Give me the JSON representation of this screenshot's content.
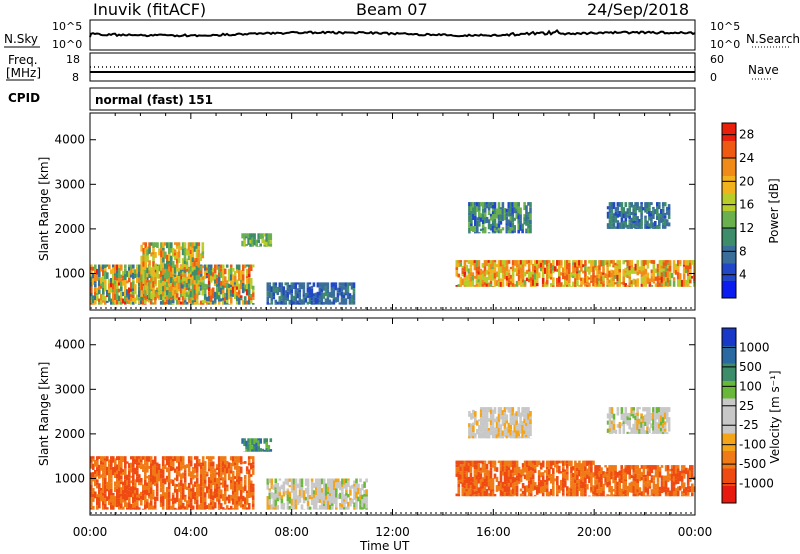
{
  "header": {
    "station": "Inuvik (fitACF)",
    "beam": "Beam 07",
    "date": "24/Sep/2018"
  },
  "noise_panel": {
    "left_label": "N.Sky",
    "left_ticks": [
      "10^5",
      "10^0"
    ],
    "right_label": "N.Search",
    "right_ticks": [
      "10^5",
      "10^0"
    ]
  },
  "freq_panel": {
    "left_label_1": "Freq.",
    "left_label_2": "[MHz]",
    "left_ticks": [
      "18",
      "8"
    ],
    "right_label": "Nave",
    "right_ticks": [
      "60",
      "0"
    ]
  },
  "cpid": {
    "label": "CPID",
    "value": "normal (fast) 151"
  },
  "colors": {
    "power": [
      "#0a1cf0",
      "#2147c8",
      "#3a6e9a",
      "#3d8c6a",
      "#6bb04e",
      "#b8cc2a",
      "#f2b21c",
      "#f08a18",
      "#ee5a12",
      "#e8200c"
    ],
    "velocity": [
      "#e81a10",
      "#ee4a12",
      "#f07a16",
      "#f4a418",
      "#c8c8c8",
      "#c8c8c8",
      "#6ab83a",
      "#3d8c6a",
      "#2a6aa0",
      "#1838c8"
    ]
  },
  "chart_data": [
    {
      "type": "heatmap",
      "name": "power",
      "ylabel": "Slant Range [km]",
      "y_ticks": [
        1000,
        2000,
        3000,
        4000
      ],
      "ylim": [
        180,
        4600
      ],
      "xlim": [
        "00:00",
        "24:00"
      ],
      "colorbar": {
        "label": "Power [dB]",
        "ticks": [
          4,
          8,
          12,
          16,
          20,
          24,
          28
        ],
        "range": [
          0,
          30
        ]
      },
      "approx_echo_regions": [
        {
          "t_start_h": 0.0,
          "t_end_h": 6.5,
          "range_km": [
            300,
            1200
          ],
          "power_db": [
            6,
            28
          ]
        },
        {
          "t_start_h": 2.0,
          "t_end_h": 4.5,
          "range_km": [
            400,
            1700
          ],
          "power_db": [
            10,
            26
          ]
        },
        {
          "t_start_h": 6.0,
          "t_end_h": 7.2,
          "range_km": [
            1600,
            1900
          ],
          "power_db": [
            10,
            16
          ]
        },
        {
          "t_start_h": 7.0,
          "t_end_h": 10.5,
          "range_km": [
            300,
            800
          ],
          "power_db": [
            4,
            10
          ]
        },
        {
          "t_start_h": 14.5,
          "t_end_h": 20.0,
          "range_km": [
            700,
            1300
          ],
          "power_db": [
            14,
            28
          ]
        },
        {
          "t_start_h": 15.0,
          "t_end_h": 17.5,
          "range_km": [
            1900,
            2600
          ],
          "power_db": [
            4,
            14
          ]
        },
        {
          "t_start_h": 20.0,
          "t_end_h": 24.0,
          "range_km": [
            700,
            1300
          ],
          "power_db": [
            14,
            28
          ]
        },
        {
          "t_start_h": 20.5,
          "t_end_h": 23.0,
          "range_km": [
            2000,
            2600
          ],
          "power_db": [
            4,
            12
          ]
        }
      ]
    },
    {
      "type": "heatmap",
      "name": "velocity",
      "ylabel": "Slant Range [km]",
      "xlabel": "Time UT",
      "y_ticks": [
        1000,
        2000,
        3000,
        4000
      ],
      "x_ticks": [
        "00:00",
        "04:00",
        "08:00",
        "12:00",
        "16:00",
        "20:00",
        "00:00"
      ],
      "ylim": [
        180,
        4600
      ],
      "colorbar": {
        "label": "Velocity [m s⁻¹]",
        "ticks": [
          "1000",
          "500",
          "100",
          "25",
          "-25",
          "-100",
          "-500",
          "-1000"
        ]
      },
      "approx_echo_regions": [
        {
          "t_start_h": 0.0,
          "t_end_h": 6.5,
          "range_km": [
            300,
            1500
          ],
          "velocity": [
            -500,
            -100
          ]
        },
        {
          "t_start_h": 6.0,
          "t_end_h": 7.2,
          "range_km": [
            1600,
            1900
          ],
          "velocity": [
            100,
            500
          ]
        },
        {
          "t_start_h": 7.0,
          "t_end_h": 11.0,
          "range_km": [
            300,
            1000
          ],
          "velocity": [
            -25,
            100
          ]
        },
        {
          "t_start_h": 14.5,
          "t_end_h": 20.0,
          "range_km": [
            600,
            1400
          ],
          "velocity": [
            -500,
            -100
          ]
        },
        {
          "t_start_h": 15.0,
          "t_end_h": 17.5,
          "range_km": [
            1900,
            2600
          ],
          "velocity": [
            -25,
            25
          ]
        },
        {
          "t_start_h": 20.0,
          "t_end_h": 24.0,
          "range_km": [
            600,
            1300
          ],
          "velocity": [
            -500,
            -100
          ]
        },
        {
          "t_start_h": 20.5,
          "t_end_h": 23.0,
          "range_km": [
            2000,
            2600
          ],
          "velocity": [
            -25,
            100
          ]
        }
      ]
    }
  ]
}
